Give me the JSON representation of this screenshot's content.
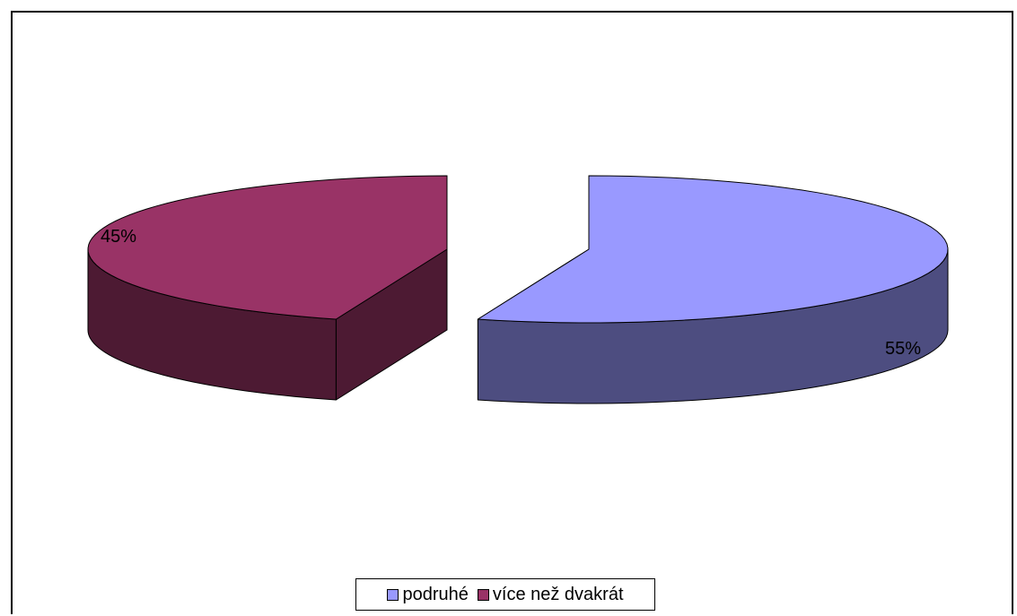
{
  "chart_data": {
    "type": "pie",
    "title": "",
    "three_d": true,
    "exploded": true,
    "slices": [
      {
        "name": "podruhé",
        "value": 55,
        "label": "55%",
        "color": "#9999FF",
        "side_color": "#4D4D80"
      },
      {
        "name": "více než dvakrát",
        "value": 45,
        "label": "45%",
        "color": "#993366",
        "side_color": "#4D1A33"
      }
    ],
    "legend_position": "bottom"
  }
}
